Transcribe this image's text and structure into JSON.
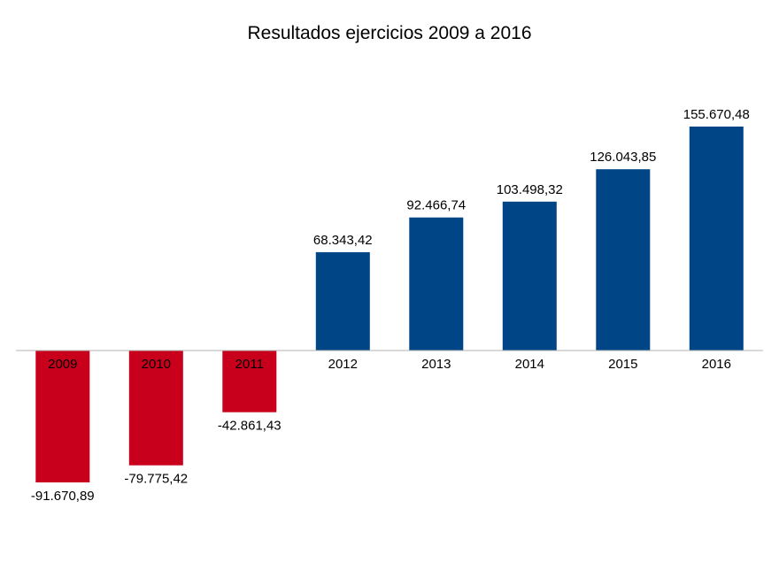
{
  "chart_data": {
    "type": "bar",
    "title": "Resultados ejercicios 2009 a 2016",
    "xlabel": "",
    "ylabel": "",
    "categories": [
      "2009",
      "2010",
      "2011",
      "2012",
      "2013",
      "2014",
      "2015",
      "2016"
    ],
    "values": [
      -91670.89,
      -79775.42,
      -42861.43,
      68343.42,
      92466.74,
      103498.32,
      126043.85,
      155670.48
    ],
    "value_labels": [
      "-91.670,89",
      "-79.775,42",
      "-42.861,43",
      "68.343,42",
      "92.466,74",
      "103.498,32",
      "126.043,85",
      "155.670,48"
    ],
    "ylim": [
      -160000,
      160000
    ],
    "grid": false,
    "legend": "none",
    "colors": {
      "positive": "#004586",
      "negative": "#c9001c",
      "axis": "#b3b3b3"
    }
  }
}
